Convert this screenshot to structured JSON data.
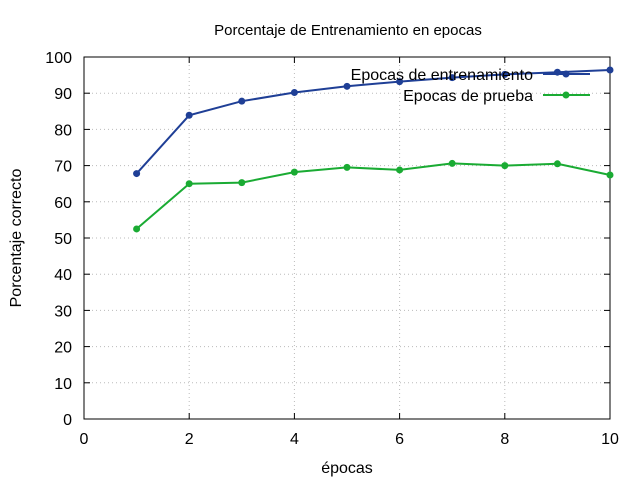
{
  "chart_data": {
    "type": "line",
    "title": "Porcentaje de Entrenamiento en epocas",
    "xlabel": "épocas",
    "ylabel": "Porcentaje correcto",
    "xlim": [
      0,
      10
    ],
    "ylim": [
      0,
      100
    ],
    "xticks": [
      "0",
      "2",
      "4",
      "6",
      "8",
      "10"
    ],
    "yticks": [
      "0",
      "10",
      "20",
      "30",
      "40",
      "50",
      "60",
      "70",
      "80",
      "90",
      "100"
    ],
    "grid": true,
    "legend_position": "top-right",
    "x": [
      1,
      2,
      3,
      4,
      5,
      6,
      7,
      8,
      9,
      10
    ],
    "series": [
      {
        "name": "Epocas de entrenamiento",
        "color": "#1f3f96",
        "values": [
          67.8,
          83.9,
          87.8,
          90.2,
          91.9,
          93.2,
          94.3,
          95.2,
          95.8,
          96.4
        ]
      },
      {
        "name": "Epocas de prueba",
        "color": "#1aab33",
        "values": [
          52.5,
          65.0,
          65.3,
          68.2,
          69.5,
          68.8,
          70.6,
          70.0,
          70.5,
          67.4
        ]
      }
    ]
  }
}
